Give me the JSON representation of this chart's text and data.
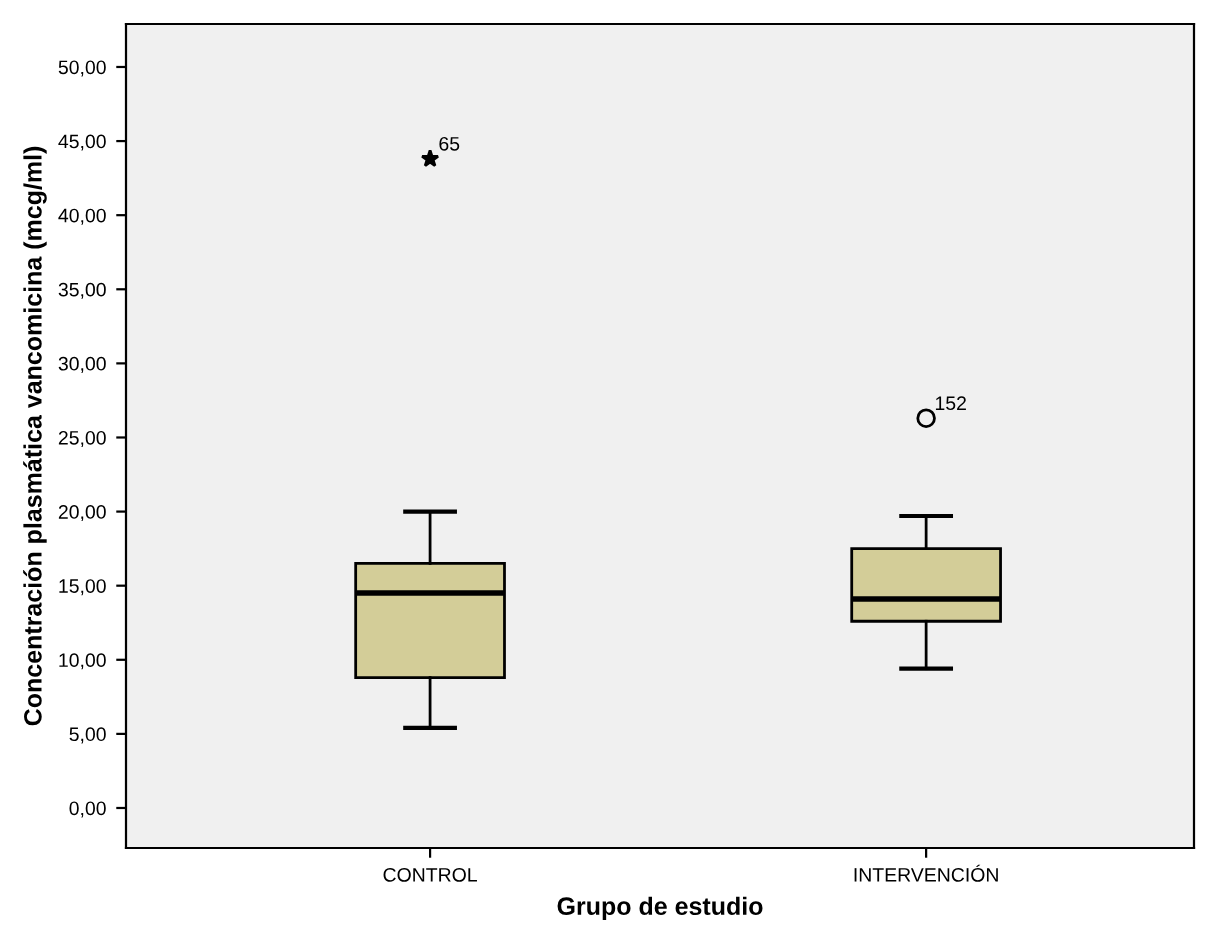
{
  "chart_data": {
    "type": "box",
    "xlabel": "Grupo de estudio",
    "ylabel": "Concentración plasmática vancomicina (mcg/ml)",
    "categories": [
      "CONTROL",
      "INTERVENCIÓN"
    ],
    "series": [
      {
        "color": "#d3cd98",
        "marker": "star",
        "boxes": [
          {
            "low": 5.4,
            "q1": 8.8,
            "median": 14.5,
            "q3": 16.5,
            "high": 20.0,
            "outliers": [
              43.8
            ]
          },
          null
        ]
      },
      {
        "color": "#d3cd98",
        "marker": "circle",
        "boxes": [
          null,
          {
            "low": 9.4,
            "q1": 12.6,
            "median": 14.1,
            "q3": 17.5,
            "high": 19.7,
            "outliers": [
              26.3
            ]
          }
        ]
      }
    ],
    "ylim": [
      -2.7,
      52.9
    ],
    "yticks": [
      {
        "value": 0,
        "label": "0,00"
      },
      {
        "value": 5,
        "label": "5,00"
      },
      {
        "value": 10,
        "label": "10,00"
      },
      {
        "value": 15,
        "label": "15,00"
      },
      {
        "value": 20,
        "label": "20,00"
      },
      {
        "value": 25,
        "label": "25,00"
      },
      {
        "value": 30,
        "label": "30,00"
      },
      {
        "value": 35,
        "label": "35,00"
      },
      {
        "value": 40,
        "label": "40,00"
      },
      {
        "value": 45,
        "label": "45,00"
      },
      {
        "value": 50,
        "label": "50,00"
      }
    ],
    "annotations": [
      "65",
      "152"
    ],
    "grid": false
  }
}
